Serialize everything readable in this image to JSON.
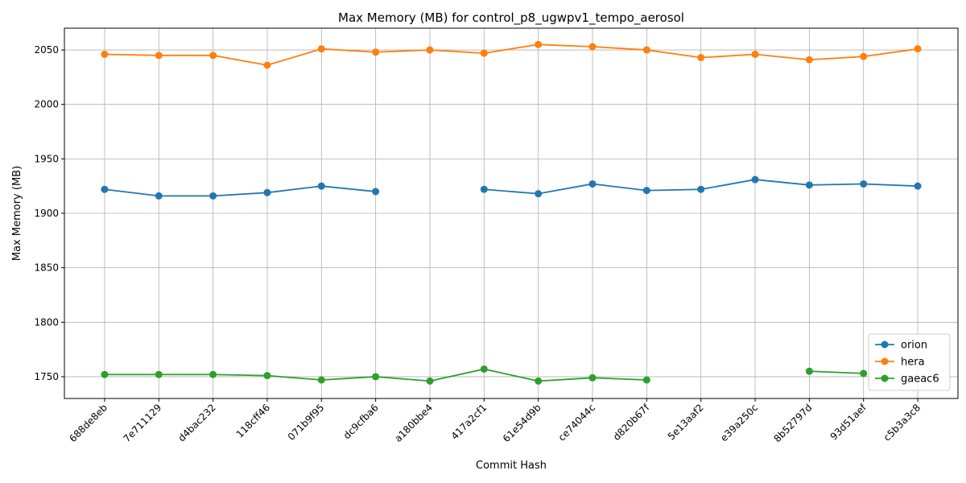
{
  "chart_data": {
    "type": "line",
    "title": "Max Memory (MB) for control_p8_ugwpv1_tempo_aerosol",
    "xlabel": "Commit Hash",
    "ylabel": "Max Memory (MB)",
    "categories": [
      "688de8eb",
      "7e711129",
      "d4bac232",
      "118cff46",
      "071b9f95",
      "dc9cfba6",
      "a180bbe4",
      "417a2cf1",
      "61e54d9b",
      "ce74044c",
      "d820b67f",
      "5e13aaf2",
      "e39a250c",
      "8b52797d",
      "93d51aef",
      "c5b3a3c8"
    ],
    "ylim": [
      1730,
      2070
    ],
    "yticks": [
      1750,
      1800,
      1850,
      1900,
      1950,
      2000,
      2050
    ],
    "grid": true,
    "legend_position": "bottom-right",
    "series": [
      {
        "name": "orion",
        "color": "#1f77b4",
        "values": [
          1922,
          1916,
          1916,
          1919,
          1925,
          1920,
          null,
          1922,
          1918,
          1927,
          1921,
          1922,
          1931,
          1926,
          1927,
          1925
        ]
      },
      {
        "name": "hera",
        "color": "#ff7f0e",
        "values": [
          2046,
          2045,
          2045,
          2036,
          2051,
          2048,
          2050,
          2047,
          2055,
          2053,
          2050,
          2043,
          2046,
          2041,
          2044,
          2051
        ]
      },
      {
        "name": "gaeac6",
        "color": "#2ca02c",
        "values": [
          1752,
          1752,
          1752,
          1751,
          1747,
          1750,
          1746,
          1757,
          1746,
          1749,
          1747,
          null,
          null,
          1755,
          1753,
          null
        ]
      }
    ]
  }
}
